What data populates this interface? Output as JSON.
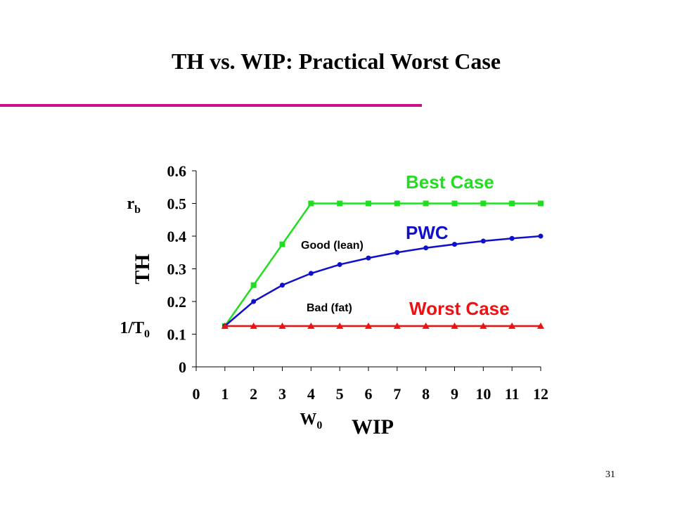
{
  "chart_data": {
    "type": "line",
    "title": "TH vs. WIP: Practical Worst Case",
    "x_label": "WIP",
    "y_label": "TH",
    "x": [
      1,
      2,
      3,
      4,
      5,
      6,
      7,
      8,
      9,
      10,
      11,
      12
    ],
    "series": [
      {
        "name": "Best Case",
        "color": "#22dd22",
        "marker": "square",
        "values": [
          0.125,
          0.25,
          0.375,
          0.5,
          0.5,
          0.5,
          0.5,
          0.5,
          0.5,
          0.5,
          0.5,
          0.5
        ]
      },
      {
        "name": "PWC",
        "color": "#1010cc",
        "marker": "circle",
        "values": [
          0.125,
          0.2,
          0.25,
          0.286,
          0.313,
          0.333,
          0.35,
          0.364,
          0.375,
          0.385,
          0.393,
          0.4
        ]
      },
      {
        "name": "Worst Case",
        "color": "#ee1111",
        "marker": "triangle",
        "values": [
          0.125,
          0.125,
          0.125,
          0.125,
          0.125,
          0.125,
          0.125,
          0.125,
          0.125,
          0.125,
          0.125,
          0.125
        ]
      }
    ],
    "annotations": [
      "Good (lean)",
      "Bad (fat)"
    ],
    "axis_marks": {
      "r_b": {
        "base": "r",
        "sub": "b"
      },
      "inv_T0": {
        "base": "1/T",
        "sub": "0"
      },
      "W0": {
        "base": "W",
        "sub": "0"
      }
    },
    "xlim": [
      0,
      12
    ],
    "xticks": [
      0,
      1,
      2,
      3,
      4,
      5,
      6,
      7,
      8,
      9,
      10,
      11,
      12
    ],
    "ylim": [
      0,
      0.6
    ],
    "yticks": [
      0,
      0.1,
      0.2,
      0.3,
      0.4,
      0.5,
      0.6
    ],
    "grid": false
  },
  "page_number": "31"
}
